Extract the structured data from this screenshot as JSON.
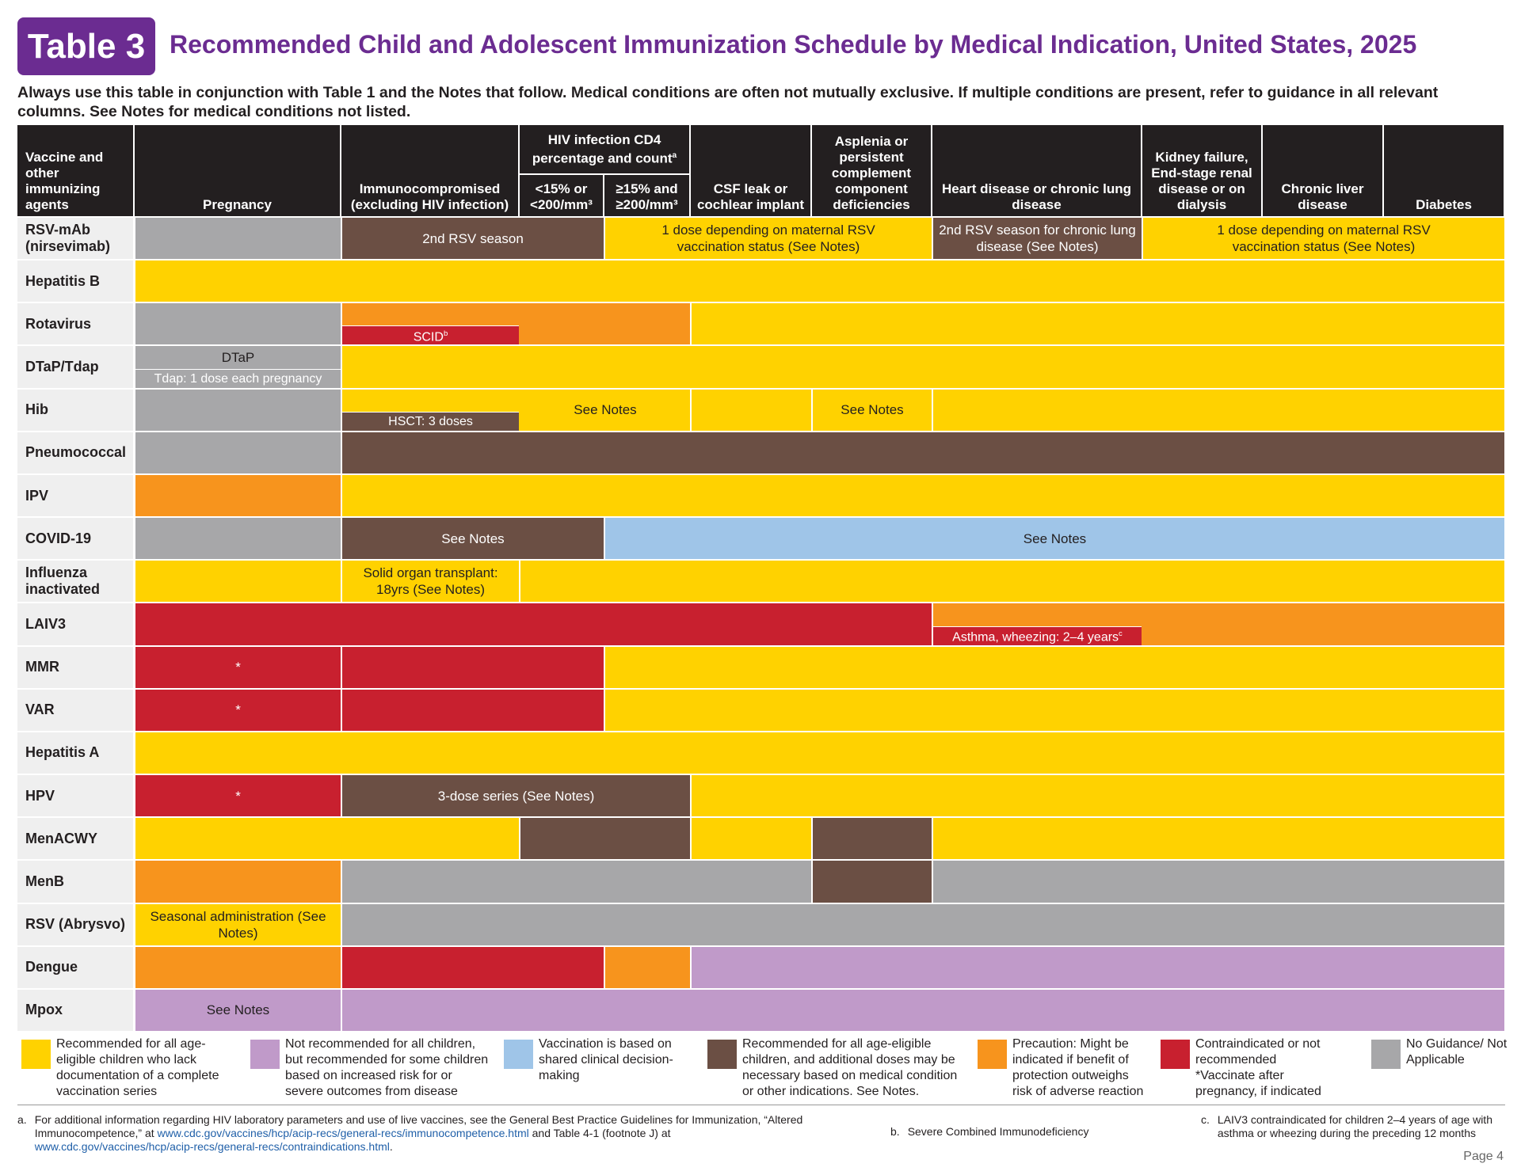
{
  "header": {
    "badge": "Table 3",
    "title": "Recommended Child and Adolescent Immunization Schedule by Medical Indication, United States, 2025",
    "subtitle": "Always use this table in conjunction with Table 1 and the Notes that follow. Medical conditions are often not mutually exclusive. If multiple conditions are present, refer to guidance in all relevant columns. See Notes for medical conditions not listed."
  },
  "colors": {
    "yellow": "#ffd200",
    "purple": "#c09ac9",
    "blue": "#9fc5e8",
    "brown": "#6b4f44",
    "orange": "#f7941d",
    "red": "#c8202f",
    "gray": "#a7a7a9"
  },
  "table": {
    "first_column": "Vaccine and other immunizing agents",
    "columns": [
      "Pregnancy",
      "Immunocompromised (excluding HIV infection)",
      {
        "label": "HIV infection CD4 percentage and count",
        "note": "a",
        "sub": [
          "<15% or <200/mm³",
          "≥15% and ≥200/mm³"
        ]
      },
      "CSF leak or cochlear implant",
      "Asplenia or persistent complement component deficiencies",
      "Heart disease or chronic lung disease",
      "Kidney failure, End-stage renal disease or on dialysis",
      "Chronic liver disease",
      "Diabetes"
    ],
    "rows": [
      {
        "vaccine": "RSV-mAb (nirsevimab)",
        "cells": [
          {
            "span": 1,
            "color": "gray"
          },
          {
            "span": 2,
            "color": "brown",
            "text": "2nd RSV season"
          },
          {
            "span": 3,
            "color": "yellow",
            "text": "1 dose depending on maternal RSV vaccination status (See Notes)"
          },
          {
            "span": 1,
            "color": "brown",
            "text": "2nd RSV season for chronic lung disease (See Notes)"
          },
          {
            "span": 3,
            "color": "yellow",
            "text": "1 dose depending on maternal RSV vaccination status (See Notes)"
          }
        ]
      },
      {
        "vaccine": "Hepatitis B",
        "cells": [
          {
            "span": 10,
            "color": "yellow"
          }
        ]
      },
      {
        "vaccine": "Rotavirus",
        "cells": [
          {
            "span": 1,
            "color": "gray"
          },
          {
            "span": 3,
            "color": "orange",
            "bar": {
              "color": "red",
              "text": "SCID",
              "note": "b"
            }
          },
          {
            "span": 6,
            "color": "yellow"
          }
        ]
      },
      {
        "vaccine": "DTaP/Tdap",
        "cells": [
          {
            "span": 1,
            "color": "gray",
            "text": "DTaP",
            "bar": {
              "color": "gray",
              "text": "Tdap: 1 dose each pregnancy"
            }
          },
          {
            "span": 9,
            "color": "yellow"
          }
        ]
      },
      {
        "vaccine": "Hib",
        "cells": [
          {
            "span": 1,
            "color": "gray"
          },
          {
            "span": 3,
            "color": "yellow",
            "text": "See Notes",
            "bar": {
              "color": "brown",
              "text": "HSCT: 3 doses"
            }
          },
          {
            "span": 1,
            "color": "yellow"
          },
          {
            "span": 1,
            "color": "yellow",
            "text": "See Notes"
          },
          {
            "span": 4,
            "color": "yellow"
          }
        ]
      },
      {
        "vaccine": "Pneumococcal",
        "cells": [
          {
            "span": 1,
            "color": "gray"
          },
          {
            "span": 9,
            "color": "brown"
          }
        ]
      },
      {
        "vaccine": "IPV",
        "cells": [
          {
            "span": 1,
            "color": "orange"
          },
          {
            "span": 9,
            "color": "yellow"
          }
        ]
      },
      {
        "vaccine": "COVID-19",
        "cells": [
          {
            "span": 1,
            "color": "gray"
          },
          {
            "span": 2,
            "color": "brown",
            "text": "See Notes"
          },
          {
            "span": 7,
            "color": "blue",
            "text": "See Notes"
          }
        ]
      },
      {
        "vaccine": "Influenza inactivated",
        "cells": [
          {
            "span": 1,
            "color": "yellow"
          },
          {
            "span": 1,
            "color": "yellow",
            "text": "Solid organ transplant: 18yrs (See Notes)"
          },
          {
            "span": 8,
            "color": "yellow"
          }
        ]
      },
      {
        "vaccine": "LAIV3",
        "cells": [
          {
            "span": 6,
            "color": "red"
          },
          {
            "span": 4,
            "color": "orange",
            "bar": {
              "color": "red",
              "text": "Asthma, wheezing: 2–4 years",
              "note": "c"
            }
          }
        ]
      },
      {
        "vaccine": "MMR",
        "cells": [
          {
            "span": 1,
            "color": "red",
            "text": "*"
          },
          {
            "span": 2,
            "color": "red"
          },
          {
            "span": 7,
            "color": "yellow"
          }
        ]
      },
      {
        "vaccine": "VAR",
        "cells": [
          {
            "span": 1,
            "color": "red",
            "text": "*"
          },
          {
            "span": 2,
            "color": "red"
          },
          {
            "span": 7,
            "color": "yellow"
          }
        ]
      },
      {
        "vaccine": "Hepatitis A",
        "cells": [
          {
            "span": 10,
            "color": "yellow"
          }
        ]
      },
      {
        "vaccine": "HPV",
        "cells": [
          {
            "span": 1,
            "color": "red",
            "text": "*"
          },
          {
            "span": 3,
            "color": "brown",
            "text": "3-dose series (See Notes)"
          },
          {
            "span": 6,
            "color": "yellow"
          }
        ]
      },
      {
        "vaccine": "MenACWY",
        "cells": [
          {
            "span": 2,
            "color": "yellow"
          },
          {
            "span": 2,
            "color": "brown"
          },
          {
            "span": 1,
            "color": "yellow"
          },
          {
            "span": 1,
            "color": "brown"
          },
          {
            "span": 4,
            "color": "yellow"
          }
        ]
      },
      {
        "vaccine": "MenB",
        "cells": [
          {
            "span": 1,
            "color": "orange"
          },
          {
            "span": 4,
            "color": "gray"
          },
          {
            "span": 1,
            "color": "brown"
          },
          {
            "span": 4,
            "color": "gray"
          }
        ]
      },
      {
        "vaccine": "RSV (Abrysvo)",
        "cells": [
          {
            "span": 1,
            "color": "yellow",
            "text": "Seasonal administration (See Notes)"
          },
          {
            "span": 9,
            "color": "gray"
          }
        ]
      },
      {
        "vaccine": "Dengue",
        "cells": [
          {
            "span": 1,
            "color": "orange"
          },
          {
            "span": 2,
            "color": "red"
          },
          {
            "span": 1,
            "color": "orange"
          },
          {
            "span": 6,
            "color": "purple"
          }
        ]
      },
      {
        "vaccine": "Mpox",
        "cells": [
          {
            "span": 1,
            "color": "purple",
            "text": "See Notes"
          },
          {
            "span": 9,
            "color": "purple"
          }
        ]
      }
    ]
  },
  "legend": [
    {
      "color": "yellow",
      "text": "Recommended for all age-eligible children who lack documentation of a complete vaccination series"
    },
    {
      "color": "purple",
      "text": "Not recommended for all children, but recommended for some children based on increased risk for or severe outcomes from disease"
    },
    {
      "color": "blue",
      "text": "Vaccination is based on shared clinical decision-making"
    },
    {
      "color": "brown",
      "text": "Recommended for all age-eligible children, and additional doses may be necessary based on medical condition or other indications. See Notes."
    },
    {
      "color": "orange",
      "text": "Precaution: Might be indicated if benefit of protection outweighs risk of adverse reaction"
    },
    {
      "color": "red",
      "text": "Contraindicated or not recommended",
      "extra": "*Vaccinate after pregnancy, if indicated"
    },
    {
      "color": "gray",
      "text": "No Guidance/ Not Applicable"
    }
  ],
  "footnotes": [
    {
      "mark": "a.",
      "parts": [
        {
          "text": "For additional information regarding HIV laboratory parameters and use of live vaccines, see the General Best Practice Guidelines for Immunization, “Altered Immunocompetence,” at "
        },
        {
          "text": "www.cdc.gov/vaccines/hcp/acip-recs/general-recs/immunocompetence.html",
          "link": true
        },
        {
          "text": " and Table 4-1 (footnote J) at "
        },
        {
          "text": "www.cdc.gov/vaccines/hcp/acip-recs/general-recs/contraindications.html",
          "link": true
        },
        {
          "text": "."
        }
      ]
    },
    {
      "mark": "b.",
      "parts": [
        {
          "text": "Severe Combined Immunodeficiency"
        }
      ]
    },
    {
      "mark": "c.",
      "parts": [
        {
          "text": "LAIV3 contraindicated for children 2–4 years of age with asthma or wheezing during the preceding 12 months"
        }
      ]
    }
  ],
  "page": "Page 4"
}
